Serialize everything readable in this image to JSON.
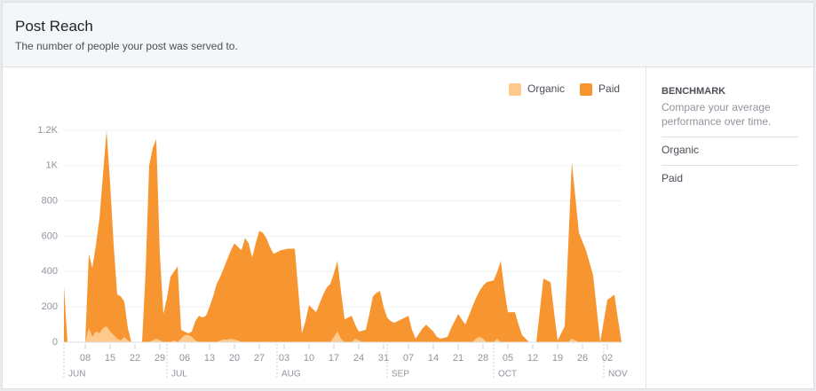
{
  "chart_data": {
    "type": "stacked-area",
    "title": "Post Reach",
    "subtitle": "The number of people your post was served to.",
    "categories": [
      null,
      null,
      null,
      null,
      null,
      null,
      "08",
      null,
      null,
      null,
      null,
      null,
      null,
      "15",
      null,
      null,
      null,
      null,
      null,
      null,
      "22",
      null,
      null,
      null,
      null,
      null,
      null,
      "29",
      null,
      null,
      null,
      null,
      null,
      null,
      "06",
      null,
      null,
      null,
      null,
      null,
      null,
      "13",
      null,
      null,
      null,
      null,
      null,
      null,
      "20",
      null,
      null,
      null,
      null,
      null,
      null,
      "27",
      null,
      null,
      null,
      null,
      null,
      null,
      "03",
      null,
      null,
      null,
      null,
      null,
      null,
      "10",
      null,
      null,
      null,
      null,
      null,
      null,
      "17",
      null,
      null,
      null,
      null,
      null,
      null,
      "24",
      null,
      null,
      null,
      null,
      null,
      null,
      "31",
      null,
      null,
      null,
      null,
      null,
      null,
      "07",
      null,
      null,
      null,
      null,
      null,
      null,
      "14",
      null,
      null,
      null,
      null,
      null,
      null,
      "21",
      null,
      null,
      null,
      null,
      null,
      null,
      "28",
      null,
      null,
      null,
      null,
      null,
      null,
      "05",
      null,
      null,
      null,
      null,
      null,
      null,
      "12",
      null,
      null,
      null,
      null,
      null,
      null,
      "19",
      null,
      null,
      null,
      null,
      null,
      null,
      "26",
      null,
      null,
      null,
      null,
      null,
      null,
      "02",
      null,
      null,
      null,
      null
    ],
    "months": [
      "JUN",
      null,
      null,
      null,
      null,
      null,
      null,
      null,
      null,
      null,
      null,
      null,
      null,
      null,
      null,
      null,
      null,
      null,
      null,
      null,
      null,
      null,
      null,
      null,
      null,
      null,
      null,
      null,
      null,
      "JUL",
      null,
      null,
      null,
      null,
      null,
      null,
      null,
      null,
      null,
      null,
      null,
      null,
      null,
      null,
      null,
      null,
      null,
      null,
      null,
      null,
      null,
      null,
      null,
      null,
      null,
      null,
      null,
      null,
      null,
      null,
      "AUG",
      null,
      null,
      null,
      null,
      null,
      null,
      null,
      null,
      null,
      null,
      null,
      null,
      null,
      null,
      null,
      null,
      null,
      null,
      null,
      null,
      null,
      null,
      null,
      null,
      null,
      null,
      null,
      null,
      null,
      null,
      "SEP",
      null,
      null,
      null,
      null,
      null,
      null,
      null,
      null,
      null,
      null,
      null,
      null,
      null,
      null,
      null,
      null,
      null,
      null,
      null,
      null,
      null,
      null,
      null,
      null,
      null,
      null,
      null,
      null,
      null,
      "OCT",
      null,
      null,
      null,
      null,
      null,
      null,
      null,
      null,
      null,
      null,
      null,
      null,
      null,
      null,
      null,
      null,
      null,
      null,
      null,
      null,
      null,
      null,
      null,
      null,
      null,
      null,
      null,
      null,
      null,
      null,
      "NOV",
      null,
      null,
      null,
      null,
      null
    ],
    "series": [
      {
        "name": "Organic",
        "color": "#fdc98c",
        "values": [
          0,
          0,
          0,
          0,
          0,
          0,
          0,
          80,
          30,
          60,
          50,
          80,
          90,
          60,
          40,
          20,
          10,
          30,
          10,
          0,
          0,
          0,
          0,
          0,
          0,
          10,
          20,
          10,
          0,
          0,
          0,
          10,
          0,
          20,
          40,
          40,
          30,
          10,
          0,
          0,
          0,
          0,
          0,
          0,
          10,
          15,
          15,
          20,
          15,
          10,
          0,
          0,
          0,
          0,
          0,
          0,
          0,
          0,
          0,
          0,
          0,
          0,
          0,
          0,
          0,
          0,
          0,
          0,
          0,
          0,
          0,
          0,
          0,
          0,
          0,
          0,
          30,
          60,
          20,
          0,
          0,
          0,
          20,
          10,
          0,
          0,
          0,
          0,
          0,
          0,
          0,
          0,
          0,
          0,
          0,
          0,
          0,
          0,
          0,
          0,
          0,
          0,
          0,
          0,
          0,
          0,
          0,
          0,
          0,
          0,
          0,
          0,
          0,
          0,
          0,
          0,
          20,
          30,
          20,
          0,
          0,
          0,
          20,
          0,
          0,
          0,
          0,
          0,
          0,
          0,
          0,
          0,
          0,
          0,
          0,
          0,
          0,
          0,
          0,
          0,
          0,
          0,
          0,
          20,
          10,
          0,
          0,
          0,
          0,
          0,
          0,
          0,
          0,
          0,
          0,
          0,
          0,
          0
        ]
      },
      {
        "name": "Paid",
        "color": "#f79530",
        "values": [
          320,
          0,
          0,
          0,
          0,
          0,
          0,
          420,
          390,
          490,
          650,
          870,
          1110,
          840,
          510,
          250,
          250,
          200,
          70,
          0,
          0,
          0,
          0,
          400,
          1000,
          1090,
          1130,
          490,
          160,
          250,
          370,
          390,
          430,
          50,
          20,
          10,
          30,
          110,
          150,
          140,
          150,
          200,
          260,
          330,
          360,
          405,
          455,
          500,
          545,
          530,
          520,
          590,
          560,
          480,
          560,
          630,
          620,
          590,
          540,
          500,
          510,
          520,
          525,
          530,
          530,
          530,
          290,
          50,
          120,
          210,
          190,
          170,
          220,
          270,
          310,
          330,
          360,
          400,
          270,
          130,
          140,
          150,
          80,
          50,
          65,
          70,
          160,
          260,
          280,
          290,
          200,
          140,
          120,
          110,
          120,
          130,
          140,
          150,
          70,
          20,
          50,
          80,
          100,
          80,
          60,
          30,
          20,
          25,
          30,
          80,
          120,
          160,
          130,
          100,
          150,
          200,
          230,
          260,
          300,
          340,
          345,
          350,
          380,
          460,
          300,
          170,
          170,
          170,
          100,
          40,
          20,
          0,
          0,
          0,
          180,
          360,
          350,
          340,
          170,
          10,
          50,
          90,
          550,
          1000,
          810,
          620,
          570,
          520,
          450,
          380,
          190,
          0,
          120,
          240,
          255,
          270,
          130,
          0
        ]
      }
    ],
    "ylim": [
      0,
      1200
    ],
    "yticks": [
      0,
      200,
      400,
      600,
      800,
      {
        "value": 1000,
        "label": "1K"
      },
      {
        "value": 1200,
        "label": "1.2K"
      }
    ],
    "grid": true,
    "legend": "top-right"
  },
  "sidebar": {
    "heading": "BENCHMARK",
    "description": "Compare your average performance over time.",
    "items": [
      "Organic",
      "Paid"
    ]
  }
}
